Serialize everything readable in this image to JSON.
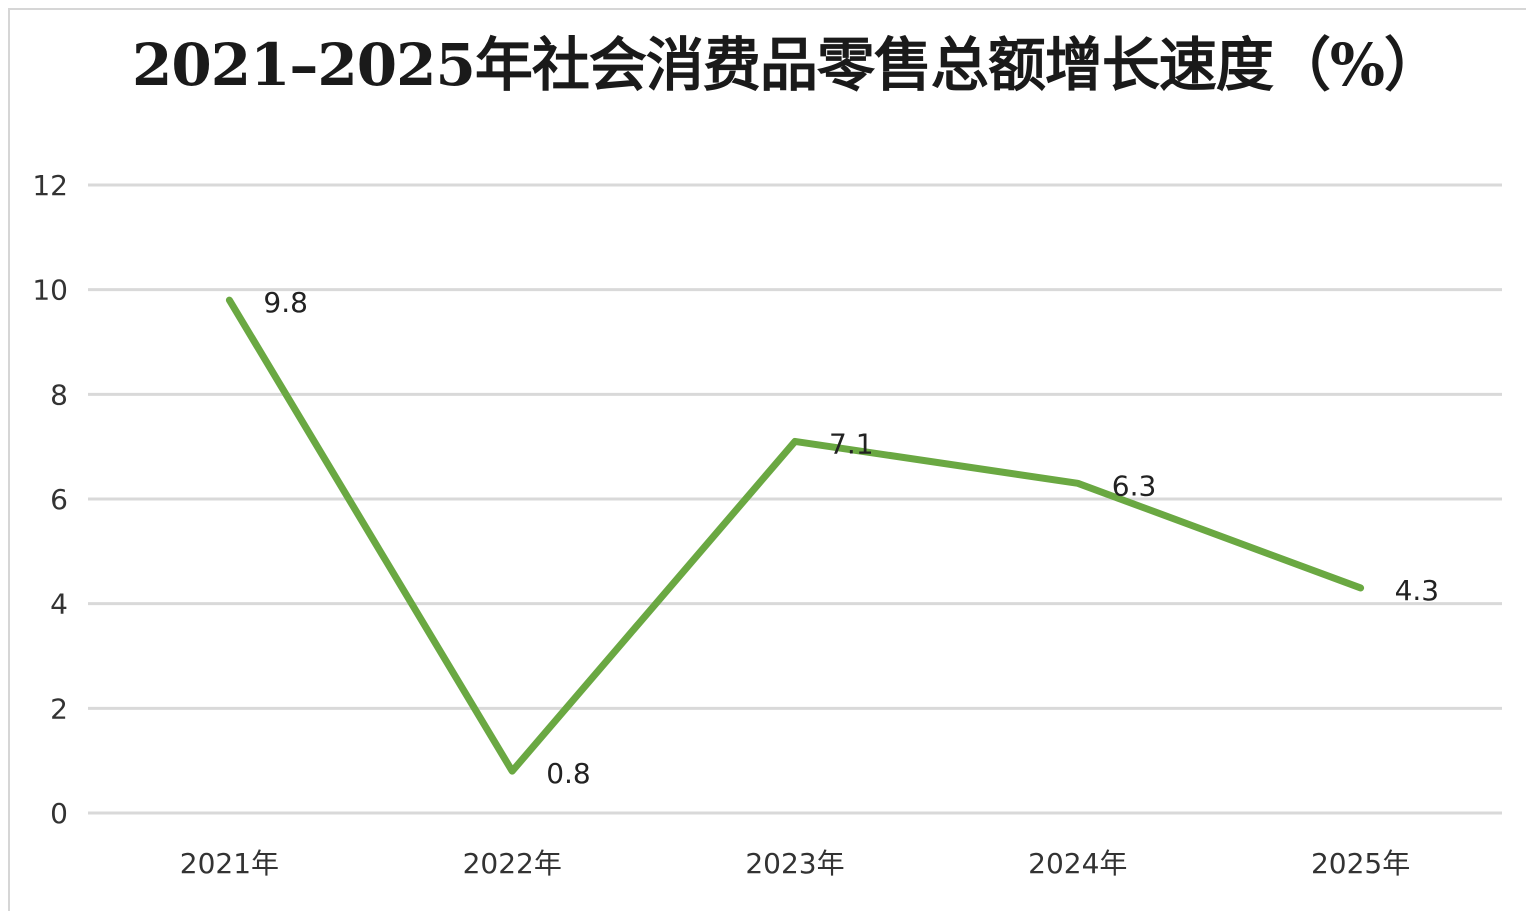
{
  "chart_data": {
    "type": "line",
    "title": "2021–2025年社会消费品零售总额增长速度（%）",
    "categories": [
      "2021年",
      "2022年",
      "2023年",
      "2024年",
      "2025年"
    ],
    "series": [
      {
        "values": [
          9.8,
          0.8,
          7.1,
          6.3,
          4.3
        ],
        "color": "#6aa842"
      }
    ],
    "data_labels": [
      "9.8",
      "0.8",
      "7.1",
      "6.3",
      "4.3"
    ],
    "yticks": [
      "0",
      "2",
      "4",
      "6",
      "8",
      "10",
      "12"
    ],
    "ylim": [
      0,
      12
    ],
    "grid": true,
    "legend": "none",
    "xlabel": "",
    "ylabel": "",
    "gridline_color": "#d9d9d9"
  }
}
